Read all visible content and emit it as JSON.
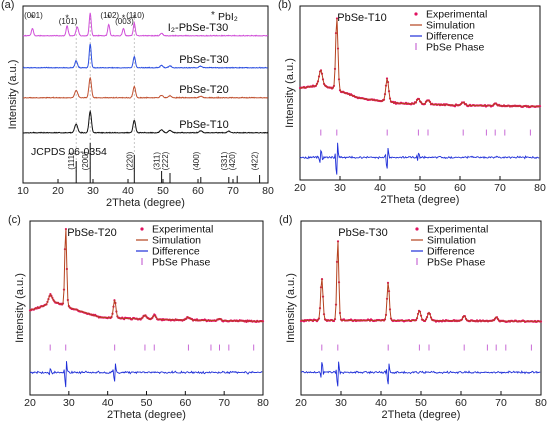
{
  "colors": {
    "frame": "#111111",
    "experimental": "#e0115f",
    "simulation": "#b5421f",
    "difference": "#1f2fd8",
    "phase": "#c86ad6",
    "xrd_pbi2": "#d04fd8",
    "xrd_t30": "#2b4ee0",
    "xrd_t20": "#c0502f",
    "xrd_t10": "#111111",
    "guide": "#b8b8b8"
  },
  "chart_data": [
    {
      "type": "line",
      "panel": "(a)",
      "xlabel": "2Theta (degree)",
      "ylabel": "Intensity (a.u.)",
      "xlim": [
        10,
        80
      ],
      "xticks": [
        10,
        20,
        30,
        40,
        50,
        60,
        70,
        80
      ],
      "stack_offsets": [
        0,
        1.0,
        2.0,
        3.0
      ],
      "series": [
        {
          "name": "PbSe-T10",
          "color": "#111111",
          "peaks": [
            [
              25.2,
              0.35,
              0.6
            ],
            [
              29.2,
              0.85,
              0.5
            ],
            [
              41.8,
              0.5,
              0.5
            ],
            [
              49.6,
              0.12,
              0.6
            ],
            [
              52.0,
              0.1,
              0.6
            ],
            [
              60.8,
              0.08,
              0.6
            ],
            [
              68.8,
              0.06,
              0.6
            ]
          ]
        },
        {
          "name": "PbSe-T20",
          "color": "#c0502f",
          "peaks": [
            [
              25.2,
              0.3,
              0.6
            ],
            [
              29.2,
              0.8,
              0.5
            ],
            [
              41.8,
              0.45,
              0.5
            ],
            [
              49.6,
              0.1,
              0.6
            ],
            [
              52.0,
              0.08,
              0.6
            ],
            [
              60.8,
              0.06,
              0.6
            ]
          ]
        },
        {
          "name": "PbSe-T30",
          "color": "#2b4ee0",
          "peaks": [
            [
              25.2,
              0.28,
              0.5
            ],
            [
              29.2,
              0.95,
              0.4
            ],
            [
              41.8,
              0.45,
              0.45
            ],
            [
              49.6,
              0.1,
              0.5
            ],
            [
              52.0,
              0.08,
              0.5
            ],
            [
              60.8,
              0.06,
              0.6
            ]
          ]
        },
        {
          "name": "I2-PbSe-T30",
          "color": "#d04fd8",
          "peaks": [
            [
              12.7,
              0.3,
              0.4
            ],
            [
              22.6,
              0.4,
              0.4
            ],
            [
              25.5,
              0.35,
              0.5
            ],
            [
              29.2,
              0.9,
              0.4
            ],
            [
              34.5,
              0.45,
              0.4
            ],
            [
              38.7,
              0.3,
              0.4
            ],
            [
              41.8,
              0.5,
              0.4
            ],
            [
              49.6,
              0.1,
              0.5
            ]
          ]
        }
      ],
      "curve_labels": [
        "PbSe-T10",
        "PbSe-T20",
        "PbSe-T30",
        "I₂-PbSe-T30"
      ],
      "pbi2_marker": "*",
      "pbi2_legend": "PbI₂",
      "pbi2_peaks": [
        {
          "x": 12.7,
          "label": "(001)"
        },
        {
          "x": 22.6,
          "label": "(101)"
        },
        {
          "x": 34.5,
          "label": "(102)"
        },
        {
          "x": 38.7,
          "label": "(003)"
        },
        {
          "x": 41.8,
          "label": "(110)"
        }
      ],
      "reference": {
        "label": "JCPDS 06-0354",
        "lines": [
          {
            "x": 25.2,
            "hkl": "(111)",
            "h": 0.55
          },
          {
            "x": 29.2,
            "hkl": "(200)",
            "h": 1.0
          },
          {
            "x": 41.8,
            "hkl": "(220)",
            "h": 0.7
          },
          {
            "x": 49.6,
            "hkl": "(311)",
            "h": 0.3
          },
          {
            "x": 52.0,
            "hkl": "(222)",
            "h": 0.25
          },
          {
            "x": 60.8,
            "hkl": "(400)",
            "h": 0.15
          },
          {
            "x": 68.8,
            "hkl": "(331)",
            "h": 0.15
          },
          {
            "x": 71.2,
            "hkl": "(420)",
            "h": 0.18
          },
          {
            "x": 77.6,
            "hkl": "(422)",
            "h": 0.2
          }
        ]
      }
    },
    {
      "type": "line",
      "panel": "(b)",
      "title": "PbSe-T10",
      "xlabel": "2Theta (degree)",
      "ylabel": "Intensity (a.u.)",
      "xlim": [
        20,
        80
      ],
      "xticks": [
        20,
        30,
        40,
        50,
        60,
        70,
        80
      ],
      "legend": [
        "Experimental",
        "Simulation",
        "Difference",
        "PbSe Phase"
      ],
      "background": [
        [
          20,
          0.22
        ],
        [
          25,
          0.25
        ],
        [
          28,
          0.22
        ],
        [
          35,
          0.12
        ],
        [
          45,
          0.07
        ],
        [
          60,
          0.05
        ],
        [
          80,
          0.04
        ]
      ],
      "peaks": [
        [
          25.2,
          0.15,
          0.6
        ],
        [
          29.2,
          0.72,
          0.4
        ],
        [
          41.8,
          0.23,
          0.5
        ],
        [
          49.6,
          0.05,
          0.6
        ],
        [
          52.0,
          0.04,
          0.6
        ],
        [
          60.8,
          0.03,
          0.6
        ],
        [
          68.8,
          0.02,
          0.6
        ]
      ],
      "difference_peaks": [
        [
          25.2,
          0.08,
          0.4
        ],
        [
          29.2,
          0.26,
          0.3
        ],
        [
          41.8,
          0.15,
          0.35
        ],
        [
          49.6,
          0.05,
          0.4
        ]
      ],
      "phase_positions": [
        25.2,
        29.2,
        41.8,
        49.6,
        52.0,
        60.8,
        66.6,
        68.8,
        71.2,
        77.6
      ]
    },
    {
      "type": "line",
      "panel": "(c)",
      "title": "PbSe-T20",
      "xlabel": "2Theta (degree)",
      "ylabel": "Intensity (a.u.)",
      "xlim": [
        20,
        80
      ],
      "xticks": [
        20,
        30,
        40,
        50,
        60,
        70,
        80
      ],
      "legend": [
        "Experimental",
        "Simulation",
        "Difference",
        "PbSe Phase"
      ],
      "background": [
        [
          20,
          0.15
        ],
        [
          24,
          0.2
        ],
        [
          26,
          0.24
        ],
        [
          30,
          0.18
        ],
        [
          38,
          0.08
        ],
        [
          50,
          0.06
        ],
        [
          80,
          0.04
        ]
      ],
      "peaks": [
        [
          25.2,
          0.08,
          0.6
        ],
        [
          29.2,
          0.78,
          0.35
        ],
        [
          41.8,
          0.18,
          0.45
        ],
        [
          49.6,
          0.04,
          0.6
        ],
        [
          52.0,
          0.04,
          0.6
        ],
        [
          60.8,
          0.03,
          0.6
        ],
        [
          68.8,
          0.02,
          0.6
        ]
      ],
      "difference_peaks": [
        [
          25.2,
          0.04,
          0.4
        ],
        [
          29.2,
          0.2,
          0.3
        ],
        [
          41.8,
          0.12,
          0.35
        ]
      ],
      "phase_positions": [
        25.2,
        29.2,
        41.8,
        49.6,
        52.0,
        60.8,
        66.6,
        68.8,
        71.2,
        77.6
      ]
    },
    {
      "type": "line",
      "panel": "(d)",
      "title": "PbSe-T30",
      "xlabel": "2Theta (degree)",
      "ylabel": "Intensity (a.u.)",
      "xlim": [
        20,
        80
      ],
      "xticks": [
        20,
        30,
        40,
        50,
        60,
        70,
        80
      ],
      "legend": [
        "Experimental",
        "Simulation",
        "Difference",
        "PbSe Phase"
      ],
      "background": [
        [
          20,
          0.05
        ],
        [
          40,
          0.05
        ],
        [
          80,
          0.04
        ]
      ],
      "peaks": [
        [
          25.2,
          0.42,
          0.4
        ],
        [
          29.2,
          0.8,
          0.35
        ],
        [
          41.8,
          0.38,
          0.4
        ],
        [
          49.6,
          0.1,
          0.5
        ],
        [
          52.0,
          0.08,
          0.5
        ],
        [
          60.8,
          0.05,
          0.5
        ],
        [
          68.8,
          0.04,
          0.5
        ]
      ],
      "difference_peaks": [
        [
          25.2,
          0.12,
          0.3
        ],
        [
          29.2,
          0.2,
          0.3
        ],
        [
          41.8,
          0.16,
          0.3
        ]
      ],
      "phase_positions": [
        25.2,
        29.2,
        41.8,
        49.6,
        52.0,
        60.8,
        66.6,
        68.8,
        71.2,
        77.6
      ]
    }
  ]
}
